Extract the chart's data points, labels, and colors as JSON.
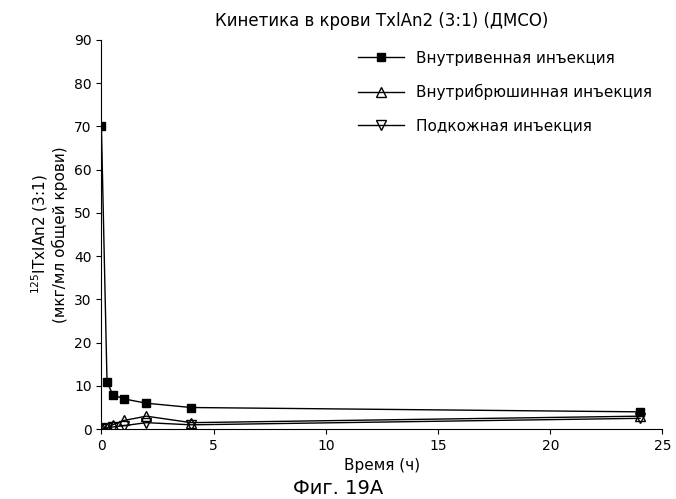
{
  "title": "Кинетика в крови TxlAn2 (3:1) (ДМСО)",
  "xlabel": "Время (ч)",
  "ylabel_line1": "$^{125}$ITxlAn2 (3:1)",
  "ylabel_line2": "(мкг/мл общей крови)",
  "caption": "Фиг. 19А",
  "xlim": [
    0,
    25
  ],
  "ylim": [
    0,
    90
  ],
  "xticks": [
    0,
    5,
    10,
    15,
    20,
    25
  ],
  "yticks": [
    0,
    10,
    20,
    30,
    40,
    50,
    60,
    70,
    80,
    90
  ],
  "series": [
    {
      "label": "Внутривенная инъекция",
      "x": [
        0,
        0.25,
        0.5,
        1,
        2,
        4,
        24
      ],
      "y": [
        70,
        11,
        8,
        7,
        6,
        5,
        4
      ],
      "color": "#000000",
      "marker": "s",
      "marker_filled": true,
      "linestyle": "-"
    },
    {
      "label": "Внутрибрюшинная инъекция",
      "x": [
        0,
        0.25,
        0.5,
        1,
        2,
        4,
        24
      ],
      "y": [
        0,
        0.3,
        1,
        2,
        3,
        1.5,
        3
      ],
      "color": "#000000",
      "marker": "^",
      "marker_filled": false,
      "linestyle": "-"
    },
    {
      "label": "Подкожная инъекция",
      "x": [
        0,
        0.25,
        0.5,
        1,
        2,
        4,
        24
      ],
      "y": [
        0,
        0.2,
        0.5,
        0.8,
        1.5,
        1.0,
        2.5
      ],
      "color": "#000000",
      "marker": "v",
      "marker_filled": false,
      "linestyle": "-"
    }
  ],
  "background_color": "#ffffff",
  "title_fontsize": 12,
  "axis_label_fontsize": 11,
  "tick_fontsize": 10,
  "legend_fontsize": 11,
  "caption_fontsize": 14
}
